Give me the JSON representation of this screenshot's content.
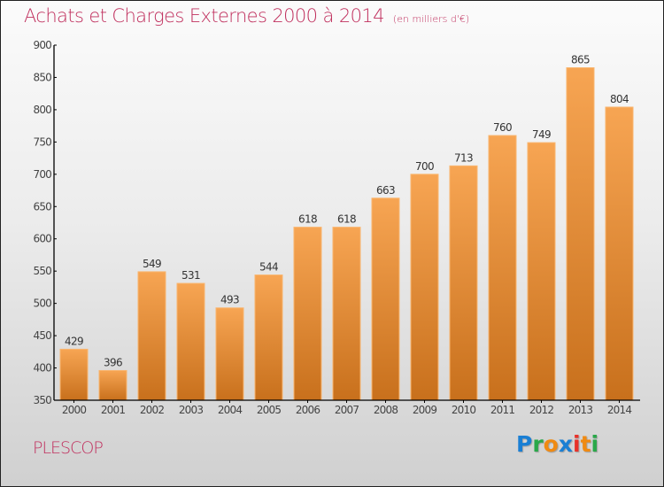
{
  "chart_data": {
    "type": "bar",
    "title": "Achats et Charges Externes 2000 à 2014",
    "subtitle": "(en milliers d'€)",
    "xlabel": "",
    "ylabel": "",
    "categories": [
      "2000",
      "2001",
      "2002",
      "2003",
      "2004",
      "2005",
      "2006",
      "2007",
      "2008",
      "2009",
      "2010",
      "2011",
      "2012",
      "2013",
      "2014"
    ],
    "values": [
      429,
      396,
      549,
      531,
      493,
      544,
      618,
      618,
      663,
      700,
      713,
      760,
      749,
      865,
      804
    ],
    "ylim": [
      350,
      900
    ],
    "yticks": [
      350,
      400,
      450,
      500,
      550,
      600,
      650,
      700,
      750,
      800,
      850,
      900
    ],
    "grid": false,
    "legend": "none",
    "data_labels": true
  },
  "colors": {
    "title": "#c0305e",
    "bar_top": "#f7a553",
    "bar_bottom": "#c8701c",
    "axis": "#000000"
  },
  "footer": {
    "city": "PLESCOP",
    "logo": [
      {
        "char": "P",
        "color": "#1a7fd4"
      },
      {
        "char": "r",
        "color": "#2aa84a"
      },
      {
        "char": "o",
        "color": "#f08a12"
      },
      {
        "char": "x",
        "color": "#1a7fd4"
      },
      {
        "char": "i",
        "color": "#e8322a"
      },
      {
        "char": "t",
        "color": "#f08a12"
      },
      {
        "char": "i",
        "color": "#2aa84a"
      }
    ]
  }
}
